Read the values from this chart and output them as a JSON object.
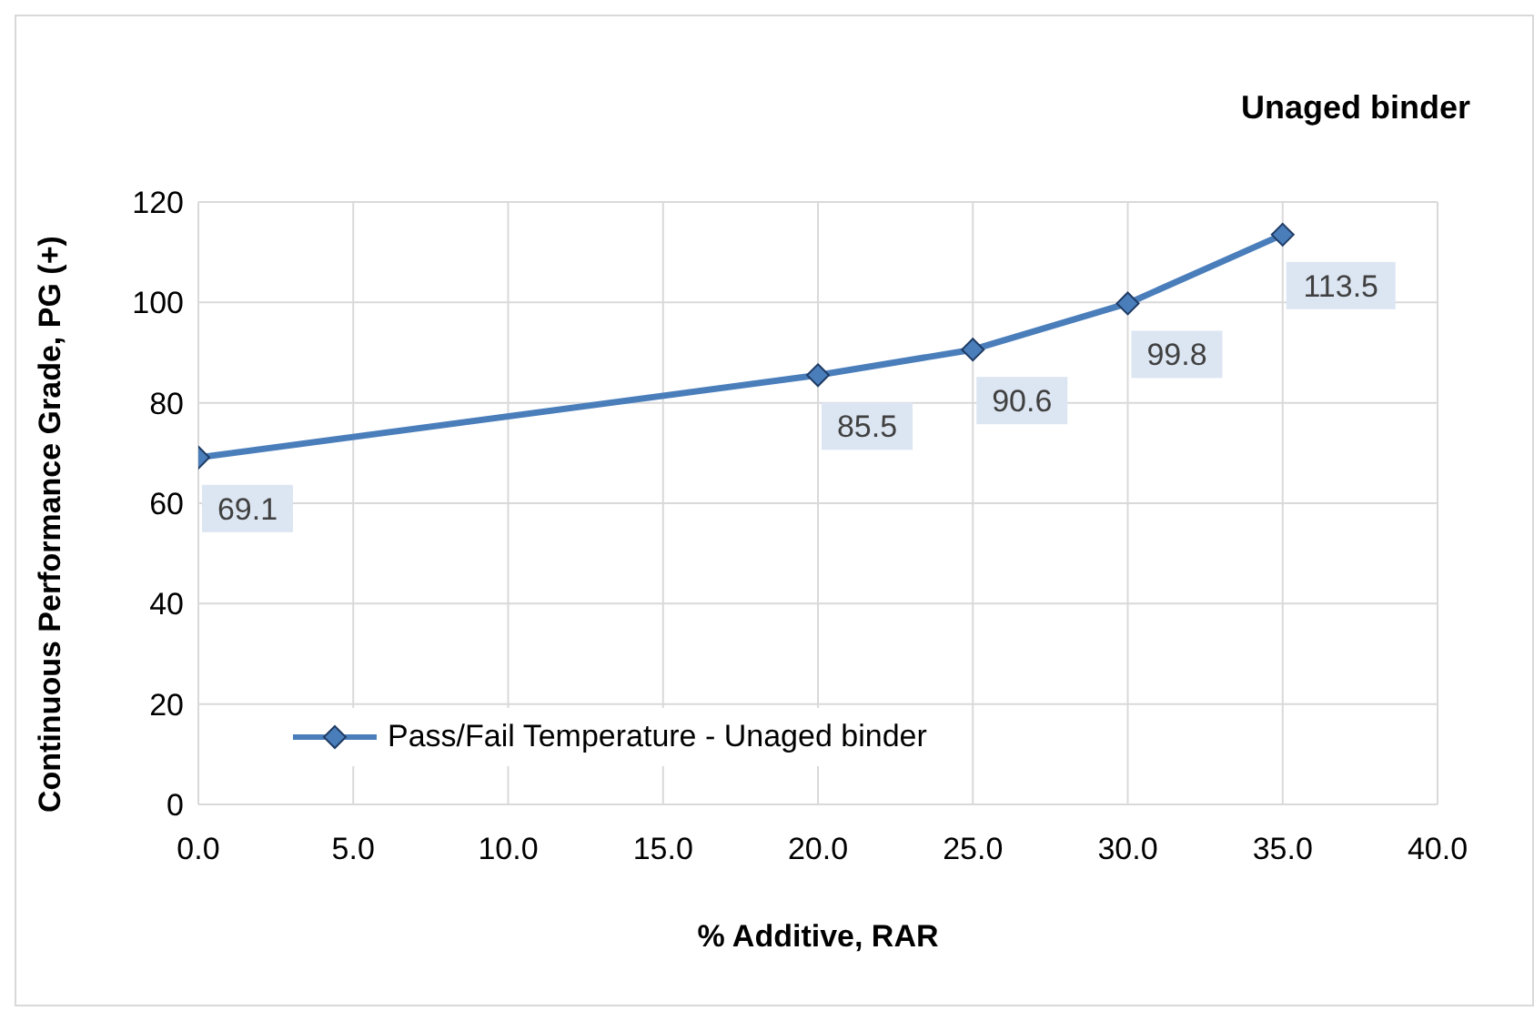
{
  "chart_data": {
    "type": "line",
    "title": "Unaged binder",
    "xlabel": "% Additive, RAR",
    "ylabel": "Continuous Performance Grade, PG (+)",
    "x": [
      0,
      20,
      25,
      30,
      35
    ],
    "series": [
      {
        "name": "Pass/Fail Temperature - Unaged binder",
        "color": "#4a7ebb",
        "values": [
          69.1,
          85.5,
          90.6,
          99.8,
          113.5
        ]
      }
    ],
    "xlim": [
      0,
      40
    ],
    "xticks": [
      {
        "value": 0,
        "label": "0.0"
      },
      {
        "value": 5,
        "label": "5.0"
      },
      {
        "value": 10,
        "label": "10.0"
      },
      {
        "value": 15,
        "label": "15.0"
      },
      {
        "value": 20,
        "label": "20.0"
      },
      {
        "value": 25,
        "label": "25.0"
      },
      {
        "value": 30,
        "label": "30.0"
      },
      {
        "value": 35,
        "label": "35.0"
      },
      {
        "value": 40,
        "label": "40.0"
      }
    ],
    "ylim": [
      0,
      120
    ],
    "yticks": [
      0,
      20,
      40,
      60,
      80,
      100,
      120
    ],
    "grid": true,
    "legend": "bottom left",
    "marker": "diamond",
    "line_style": "solid",
    "data_labels": true
  }
}
